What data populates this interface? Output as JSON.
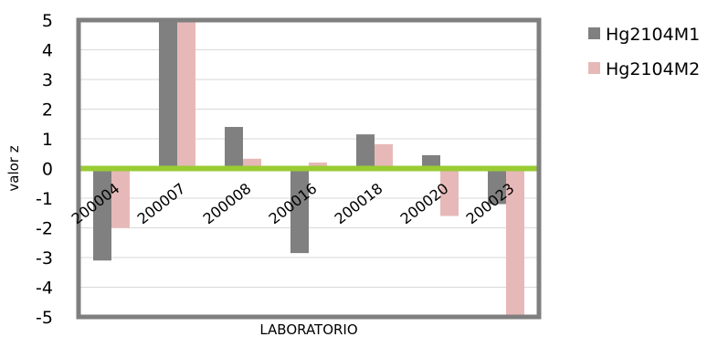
{
  "chart_data": {
    "type": "bar",
    "title": "",
    "xlabel": "LABORATORIO",
    "ylabel": "valor z",
    "categories": [
      "200004",
      "200007",
      "200008",
      "200016",
      "200018",
      "200020",
      "200023"
    ],
    "series": [
      {
        "name": "Hg2104M1",
        "color": "#808080",
        "values": [
          -3.1,
          5.0,
          1.4,
          -2.85,
          1.15,
          0.45,
          -1.2
        ]
      },
      {
        "name": "Hg2104M2",
        "color": "#e6b9b8",
        "values": [
          -2.0,
          5.0,
          0.33,
          0.2,
          0.82,
          -1.6,
          -5.0
        ]
      }
    ],
    "ylim": [
      -5,
      5
    ],
    "yticks": [
      "5",
      "4",
      "3",
      "2",
      "1",
      "0",
      "-1",
      "-2",
      "-3",
      "-4",
      "-5"
    ],
    "grid": true,
    "legend_position": "right",
    "zero_line_color": "#99cc33",
    "frame_color": "#7f7f7f"
  }
}
